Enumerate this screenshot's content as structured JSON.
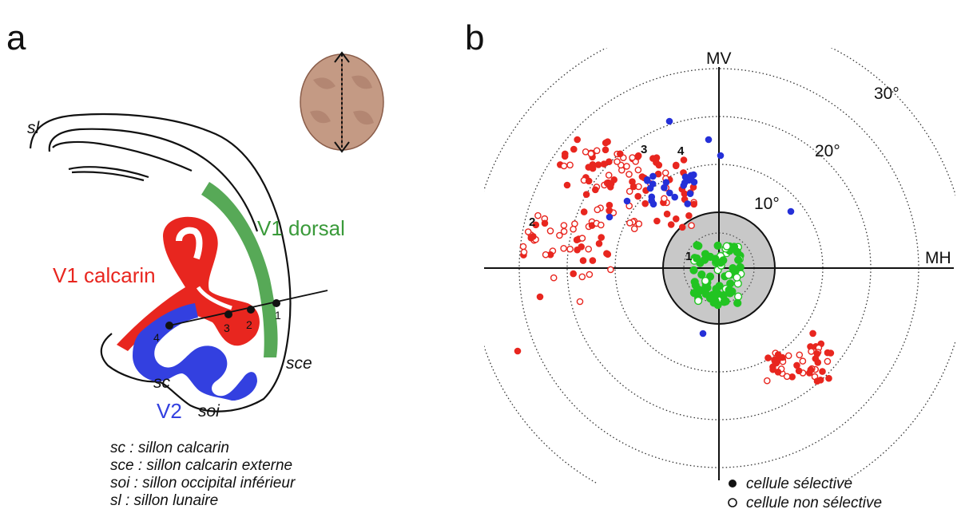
{
  "panel_a": {
    "letter": "a",
    "labels": {
      "sl": "sl",
      "sce": "sce",
      "sc": "sc",
      "soi": "soi",
      "v1_dorsal": "V1 dorsal",
      "v1_calcarin": "V1 calcarin",
      "v2": "V2"
    },
    "sites": [
      "1",
      "2",
      "3",
      "4"
    ],
    "legend": [
      "sc : sillon calcarin",
      "sce : sillon calcarin externe",
      "soi : sillon occipital inférieur",
      "sl : sillon lunaire"
    ],
    "colors": {
      "v1_calcarin": "#e8261f",
      "v1_dorsal": "#3a9a3a",
      "v2": "#3340e0"
    }
  },
  "panel_b": {
    "letter": "b",
    "axis_vertical": "MV",
    "axis_horizontal": "MH",
    "eccentricity_labels": [
      "10°",
      "20°",
      "30°"
    ],
    "site_labels": [
      "1",
      "2",
      "3",
      "4"
    ],
    "legend": {
      "selective": "cellule sélective",
      "non_selective": "cellule non sélective"
    },
    "colors": {
      "red": "#e8261f",
      "blue": "#2530d8",
      "green": "#22c422",
      "disc": "#c8c8c8"
    }
  }
}
